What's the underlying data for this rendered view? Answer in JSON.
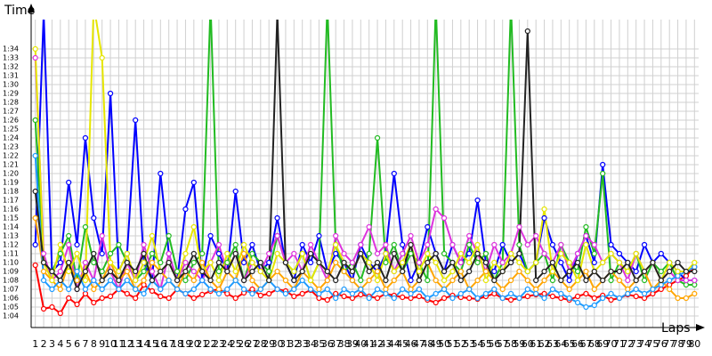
{
  "chart_data": {
    "type": "line",
    "y_label": "Time",
    "x_label": "Laps",
    "xlim": [
      0.5,
      80.5
    ],
    "ylim": [
      62.7,
      97.3
    ],
    "grid": true,
    "xticks": [
      1,
      2,
      3,
      4,
      5,
      6,
      7,
      8,
      9,
      10,
      11,
      12,
      13,
      14,
      15,
      16,
      17,
      18,
      19,
      20,
      21,
      22,
      23,
      24,
      25,
      26,
      27,
      28,
      29,
      30,
      31,
      32,
      33,
      34,
      35,
      36,
      37,
      38,
      39,
      40,
      41,
      42,
      43,
      44,
      45,
      46,
      47,
      48,
      49,
      50,
      51,
      52,
      53,
      54,
      55,
      56,
      57,
      58,
      59,
      60,
      61,
      62,
      63,
      64,
      65,
      66,
      67,
      68,
      69,
      70,
      71,
      72,
      73,
      74,
      75,
      76,
      77,
      78,
      79,
      80
    ],
    "yticks": [
      {
        "value": 64,
        "label": "1:04"
      },
      {
        "value": 65,
        "label": "1:05"
      },
      {
        "value": 66,
        "label": "1:06"
      },
      {
        "value": 67,
        "label": "1:07"
      },
      {
        "value": 68,
        "label": "1:08"
      },
      {
        "value": 69,
        "label": "1:09"
      },
      {
        "value": 70,
        "label": "1:10"
      },
      {
        "value": 71,
        "label": "1:11"
      },
      {
        "value": 72,
        "label": "1:12"
      },
      {
        "value": 73,
        "label": "1:13"
      },
      {
        "value": 74,
        "label": "1:14"
      },
      {
        "value": 75,
        "label": "1:15"
      },
      {
        "value": 76,
        "label": "1:16"
      },
      {
        "value": 77,
        "label": "1:17"
      },
      {
        "value": 78,
        "label": "1:18"
      },
      {
        "value": 79,
        "label": "1:19"
      },
      {
        "value": 80,
        "label": "1:20"
      },
      {
        "value": 81,
        "label": "1:21"
      },
      {
        "value": 82,
        "label": "1:22"
      },
      {
        "value": 83,
        "label": "1:23"
      },
      {
        "value": 84,
        "label": "1:24"
      },
      {
        "value": 85,
        "label": "1:25"
      },
      {
        "value": 86,
        "label": "1:26"
      },
      {
        "value": 87,
        "label": "1:27"
      },
      {
        "value": 88,
        "label": "1:28"
      },
      {
        "value": 89,
        "label": "1:29"
      },
      {
        "value": 90,
        "label": "1:30"
      },
      {
        "value": 91,
        "label": "1:31"
      },
      {
        "value": 92,
        "label": "1:32"
      },
      {
        "value": 93,
        "label": "1:33"
      },
      {
        "value": 94,
        "label": "1:34"
      }
    ],
    "series": [
      {
        "color": "#ff0000",
        "values": [
          69.7,
          64.8,
          65,
          64.3,
          66,
          65.3,
          66.5,
          65.5,
          66,
          66.2,
          67,
          66.5,
          66,
          67.5,
          66.8,
          66.2,
          66,
          67,
          66.5,
          66,
          66.4,
          66.8,
          67,
          66.5,
          66,
          66.6,
          67,
          66.3,
          66.5,
          67,
          66.8,
          66.2,
          66.5,
          66.9,
          66,
          65.8,
          66.5,
          66.2,
          66,
          66.4,
          66.2,
          66,
          66.5,
          66.3,
          66.1,
          66,
          66.2,
          65.8,
          65.5,
          66,
          66.3,
          66.1,
          66,
          65.9,
          66.2,
          66.5,
          66,
          65.8,
          66,
          66.2,
          66.4,
          66.5,
          66.2,
          66,
          65.8,
          66.2,
          66.5,
          66,
          66.3,
          65.8,
          66,
          66.4,
          66.2,
          66,
          66.5,
          67,
          67.5,
          68,
          68.5,
          69.5
        ]
      },
      {
        "color": "#0000ff",
        "values": [
          72,
          98,
          69,
          70,
          79,
          72,
          84,
          75,
          71,
          89,
          69,
          71,
          86,
          70,
          68,
          80,
          71,
          68,
          76,
          79,
          68,
          73,
          71,
          69,
          78,
          70,
          72,
          69,
          70,
          75,
          70,
          68,
          72,
          70,
          73,
          69,
          71,
          70,
          68,
          72,
          70,
          69,
          71,
          80,
          72,
          68,
          70,
          74,
          71,
          69,
          72,
          70,
          71,
          77,
          70,
          69,
          72,
          70,
          71,
          69,
          70,
          75,
          72,
          70,
          68,
          71,
          73,
          70,
          81,
          72,
          71,
          70,
          69,
          72,
          70,
          71,
          70,
          69,
          68,
          68
        ]
      },
      {
        "color": "#22bb22",
        "values": [
          86,
          70,
          69,
          71,
          73,
          68,
          74,
          70,
          69,
          71,
          72,
          70,
          68,
          69,
          71,
          70,
          73,
          69,
          68,
          70,
          71,
          99,
          69,
          70,
          72,
          68,
          71,
          70,
          69,
          73,
          70,
          69,
          71,
          68,
          70,
          99,
          72,
          69,
          70,
          68,
          71,
          84,
          70,
          72,
          69,
          71,
          70,
          68,
          99,
          71,
          70,
          69,
          72,
          70,
          71,
          68,
          70,
          99,
          72,
          69,
          70,
          71,
          68,
          72,
          70,
          69,
          74,
          71,
          80,
          68,
          70,
          69,
          71,
          68,
          70,
          69,
          70,
          68,
          67.5,
          67.5
        ]
      },
      {
        "color": "#dd33dd",
        "values": [
          93,
          71,
          68,
          69,
          72,
          67,
          70,
          68,
          73,
          69,
          67,
          70,
          68,
          72,
          69,
          67,
          71,
          68,
          70,
          69,
          68,
          70,
          72,
          69,
          71,
          68,
          70,
          69,
          71,
          73,
          70,
          71,
          69,
          72,
          70,
          68,
          73,
          71,
          70,
          72,
          74,
          71,
          72,
          69,
          71,
          73,
          70,
          72,
          76,
          75,
          72,
          70,
          73,
          71,
          69,
          72,
          70,
          71,
          74,
          72,
          73,
          71,
          70,
          72,
          69,
          71,
          73,
          72,
          70,
          71,
          70,
          68,
          71,
          69,
          70,
          68,
          69,
          68,
          68,
          68
        ]
      },
      {
        "color": "#ffa500",
        "values": [
          75,
          69,
          68,
          67,
          70,
          68,
          69,
          67,
          68,
          70,
          68,
          69,
          67,
          68,
          70,
          69,
          68,
          67,
          69,
          68,
          70,
          68,
          67,
          69,
          68,
          71,
          68,
          67,
          68,
          69,
          68,
          67,
          69,
          68,
          67,
          68,
          70,
          69,
          68,
          67,
          68,
          69,
          67,
          68,
          69,
          67,
          68,
          70,
          68,
          67,
          68,
          69,
          67,
          68,
          69,
          68,
          67,
          68,
          69,
          68,
          67,
          68,
          69,
          68,
          67,
          68,
          69,
          67,
          68,
          69,
          68,
          67,
          68,
          69,
          67,
          68,
          67,
          66,
          66,
          66.5
        ]
      },
      {
        "color": "#1e9bff",
        "values": [
          82,
          68,
          67,
          68,
          67,
          69,
          67,
          68,
          67,
          68,
          67,
          68,
          67,
          66.5,
          68,
          67,
          68,
          67,
          66.5,
          67,
          68,
          67,
          66.5,
          67,
          68,
          67,
          66.5,
          67,
          68,
          67,
          66.5,
          67,
          68,
          67,
          66.5,
          67,
          66,
          67,
          66.5,
          67,
          66,
          67,
          66.5,
          66,
          67,
          66.5,
          67,
          66,
          66.5,
          67,
          66,
          66.5,
          67,
          66,
          66.5,
          67,
          66,
          66.5,
          66,
          67,
          66.5,
          66,
          67,
          66.5,
          66,
          65.5,
          65,
          65.2,
          66,
          66.5,
          66,
          66.5,
          67,
          66.5,
          67,
          67.5,
          68,
          68.5,
          69,
          69.5
        ]
      },
      {
        "color": "#e6e600",
        "values": [
          94,
          70,
          68,
          72,
          69,
          71,
          68,
          99,
          93,
          70,
          69,
          71,
          68,
          70,
          73,
          69,
          70,
          68,
          71,
          74,
          69,
          70,
          68,
          71,
          69,
          72,
          70,
          69,
          68,
          71,
          70,
          69,
          71,
          68,
          70,
          69,
          72,
          70,
          69,
          71,
          70,
          68,
          71,
          69,
          70,
          72,
          69,
          71,
          70,
          68,
          69,
          71,
          70,
          72,
          68,
          70,
          69,
          71,
          70,
          69,
          70,
          76,
          69,
          71,
          70,
          68,
          72,
          69,
          70,
          71,
          70,
          69,
          71,
          69,
          70,
          68,
          70,
          69,
          69,
          70
        ]
      },
      {
        "color": "#222222",
        "values": [
          78,
          70,
          69,
          68,
          70,
          67,
          69,
          71,
          68,
          69,
          68,
          70,
          69,
          71,
          68,
          69,
          70,
          68,
          69,
          71,
          69,
          68,
          70,
          69,
          71,
          68,
          69,
          70,
          68,
          98,
          70,
          68,
          69,
          71,
          70,
          69,
          68,
          70,
          69,
          71,
          69,
          70,
          68,
          71,
          69,
          72,
          68,
          70,
          71,
          69,
          70,
          68,
          69,
          71,
          70,
          68,
          69,
          70,
          71,
          96,
          68,
          69,
          70,
          68,
          69,
          70,
          68,
          69,
          68,
          69,
          69,
          70,
          68,
          69,
          70,
          68,
          69,
          70,
          69,
          69
        ]
      }
    ]
  }
}
